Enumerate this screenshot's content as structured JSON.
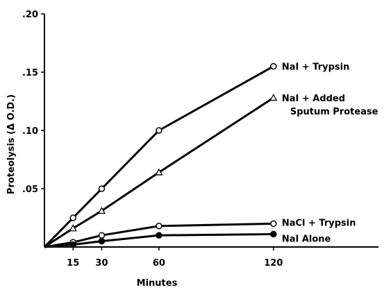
{
  "chart_data": {
    "type": "line",
    "title": "",
    "xlabel": "Minutes",
    "ylabel": "Proteolysis (Δ O.D.)",
    "xlim": [
      0,
      175
    ],
    "ylim": [
      0,
      0.2
    ],
    "x_ticks": [
      15,
      30,
      60,
      120
    ],
    "x_tick_labels": [
      "15",
      "30",
      "60",
      "120"
    ],
    "y_ticks": [
      0.05,
      0.1,
      0.15,
      0.2
    ],
    "y_tick_labels": [
      ".05",
      ".10",
      ".15",
      ".20"
    ],
    "grid": false,
    "legend": "inline labels at right end of each line",
    "series": [
      {
        "name": "NaI + Trypsin",
        "label_lines": [
          "NaI + Trypsin"
        ],
        "marker": "open-circle",
        "x": [
          0,
          15,
          30,
          60,
          120
        ],
        "y": [
          0,
          0.025,
          0.05,
          0.1,
          0.155
        ]
      },
      {
        "name": "NaI + Added Sputum Protease",
        "label_lines": [
          "NaI + Added",
          "Sputum Protease"
        ],
        "marker": "open-triangle",
        "x": [
          0,
          15,
          30,
          60,
          120
        ],
        "y": [
          0,
          0.016,
          0.031,
          0.064,
          0.128
        ]
      },
      {
        "name": "NaCl + Trypsin",
        "label_lines": [
          "NaCl + Trypsin"
        ],
        "marker": "open-circle",
        "x": [
          0,
          15,
          30,
          60,
          120
        ],
        "y": [
          0,
          0.004,
          0.01,
          0.018,
          0.02
        ]
      },
      {
        "name": "NaI Alone",
        "label_lines": [
          "NaI Alone"
        ],
        "marker": "filled-circle",
        "x": [
          0,
          15,
          30,
          60,
          120
        ],
        "y": [
          0,
          0.002,
          0.005,
          0.01,
          0.011
        ]
      }
    ]
  }
}
